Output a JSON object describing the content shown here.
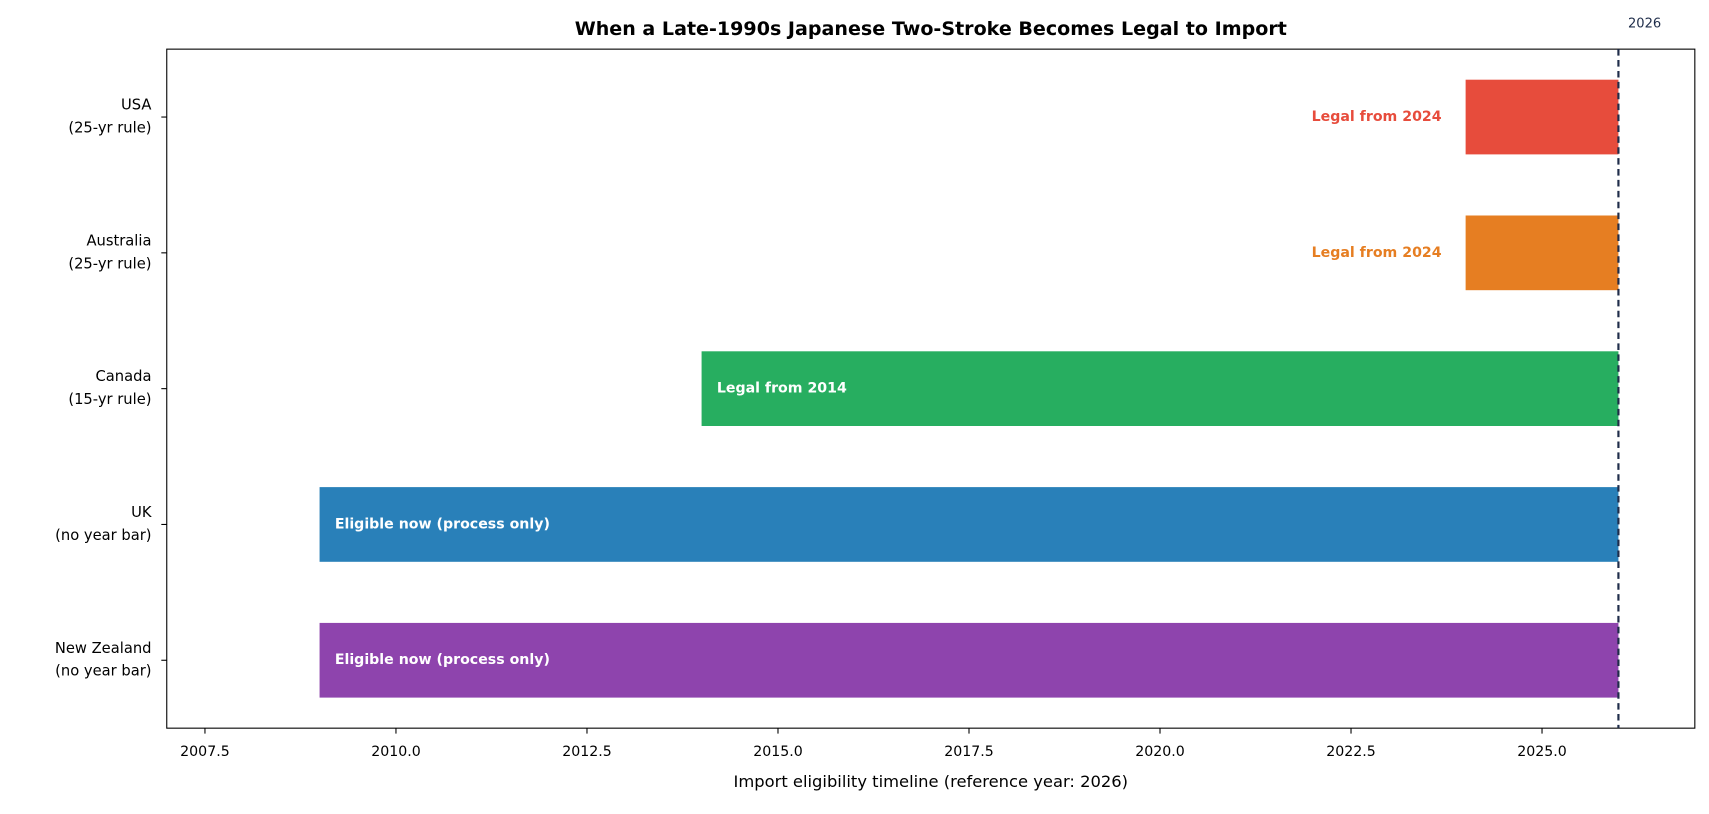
{
  "chart_data": {
    "type": "range-bar",
    "title": "When a Late-1990s Japanese Two-Stroke Becomes Legal to Import",
    "x_label": "Import eligibility timeline (reference year: 2026)",
    "categories": [
      "USA\n(25-yr rule)",
      "Australia\n(25-yr rule)",
      "Canada\n(15-yr rule)",
      "UK\n(no year bar)",
      "New Zealand\n(no year bar)"
    ],
    "start": [
      2024,
      2024,
      2014,
      2009,
      2009
    ],
    "end": [
      2026,
      2026,
      2026,
      2026,
      2026
    ],
    "colors": [
      "#e74c3c",
      "#e67e22",
      "#27ae60",
      "#2980b9",
      "#8e44ad"
    ],
    "bar_labels": [
      "Legal from 2024",
      "Legal from 2024",
      "Legal from 2014",
      "Eligible now (process only)",
      "Eligible now (process only)"
    ],
    "xlim": [
      2007,
      2027
    ],
    "xticks": [
      {
        "value": 2007.5,
        "label": "2007.5"
      },
      {
        "value": 2010,
        "label": "2010.0"
      },
      {
        "value": 2012.5,
        "label": "2012.5"
      },
      {
        "value": 2015,
        "label": "2015.0"
      },
      {
        "value": 2017.5,
        "label": "2017.5"
      },
      {
        "value": 2020,
        "label": "2020.0"
      },
      {
        "value": 2022.5,
        "label": "2022.5"
      },
      {
        "value": 2025,
        "label": "2025.0"
      }
    ],
    "reference_line": {
      "value": 2026,
      "label": "2026",
      "color": "#1f2d4a"
    }
  }
}
